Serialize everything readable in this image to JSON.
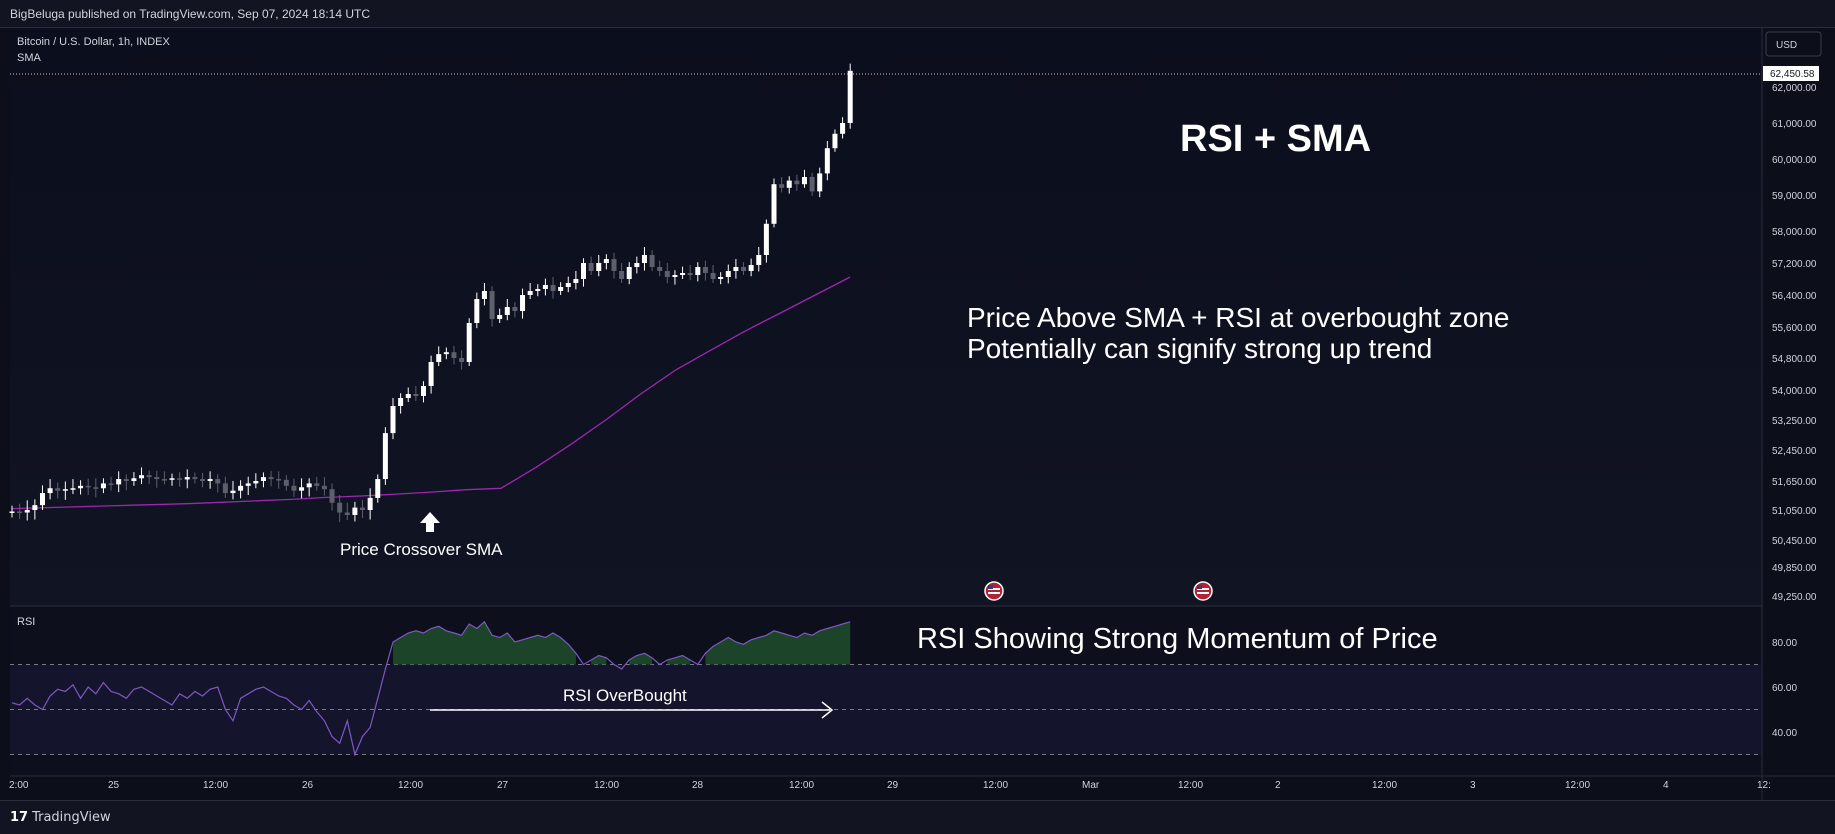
{
  "header": {
    "published": "BigBeluga published on TradingView.com, Sep 07, 2024 18:14 UTC"
  },
  "legend": {
    "symbol": "Bitcoin / U.S. Dollar, 1h, INDEX",
    "indicator": "SMA"
  },
  "currency_button": "USD",
  "rsi_label": "RSI",
  "footer": {
    "brand": "TradingView",
    "logo": "17"
  },
  "colors": {
    "bg": "#0c0f1a",
    "bull": "#ffffff",
    "bear": "#5d606b",
    "sma": "#9c27b0",
    "rsi": "#7e57c2",
    "rsi_fill": "#1c1a3a",
    "overbought_fill": "#1e4d2b",
    "text": "#d1d4dc"
  },
  "chart_data": [
    {
      "type": "candlestick",
      "title": "Bitcoin / U.S. Dollar, 1h, INDEX",
      "last_price_label": "62,450.58",
      "y_ticks": [
        "62,000.00",
        "61,000.00",
        "60,000.00",
        "59,000.00",
        "58,000.00",
        "57,200.00",
        "56,400.00",
        "55,600.00",
        "54,800.00",
        "54,000.00",
        "53,250.00",
        "52,450.00",
        "51,650.00",
        "51,050.00",
        "50,450.00",
        "49,850.00",
        "49,250.00"
      ],
      "x_ticks": [
        "2:00",
        "25",
        "12:00",
        "26",
        "12:00",
        "27",
        "12:00",
        "28",
        "12:00",
        "29",
        "12:00",
        "Mar",
        "12:00",
        "2",
        "12:00",
        "3",
        "12:00",
        "4",
        "12:"
      ],
      "close": [
        51020,
        51000,
        51050,
        51150,
        51400,
        51500,
        51450,
        51480,
        51500,
        51550,
        51520,
        51500,
        51600,
        51580,
        51700,
        51650,
        51720,
        51800,
        51750,
        51700,
        51680,
        51720,
        51690,
        51750,
        51700,
        51650,
        51700,
        51600,
        51400,
        51450,
        51550,
        51600,
        51650,
        51750,
        51700,
        51680,
        51550,
        51450,
        51520,
        51600,
        51550,
        51480,
        51200,
        51000,
        50950,
        51100,
        51050,
        51300,
        51700,
        52900,
        53600,
        53800,
        53900,
        53850,
        54100,
        54700,
        54900,
        54950,
        54800,
        54700,
        55700,
        56300,
        56500,
        55800,
        55900,
        56100,
        56000,
        56400,
        56500,
        56550,
        56650,
        56500,
        56600,
        56700,
        56800,
        57200,
        57000,
        57200,
        57300,
        57000,
        56800,
        57100,
        57200,
        57400,
        57100,
        57000,
        56850,
        56900,
        56950,
        56900,
        57100,
        56950,
        56800,
        56850,
        57000,
        57100,
        57000,
        57150,
        57400,
        58200,
        59300,
        59200,
        59400,
        59300,
        59500,
        59100,
        59600,
        60300,
        60700,
        61000,
        62450
      ],
      "sma": [
        51080,
        51100,
        51120,
        51140,
        51160,
        51180,
        51210,
        51240,
        51270,
        51310,
        51340,
        51380,
        51420,
        51470,
        51500,
        52000,
        52600,
        53250,
        53900,
        54500,
        55000,
        55500,
        55950,
        56400,
        56850
      ],
      "annotations": [
        {
          "text": "RSI + SMA"
        },
        {
          "text": "Price Above SMA + RSI at overbought zone"
        },
        {
          "text": "Potentially can signify strong up trend"
        },
        {
          "text": "Price Crossover SMA"
        }
      ]
    },
    {
      "type": "line",
      "title": "RSI",
      "y_ticks": [
        "80.00",
        "60.00",
        "40.00"
      ],
      "levels": [
        70,
        50,
        30
      ],
      "rsi": [
        53,
        52,
        55,
        52,
        50,
        56,
        59,
        58,
        61,
        55,
        60,
        57,
        62,
        58,
        57,
        55,
        59,
        60,
        58,
        56,
        54,
        52,
        57,
        55,
        58,
        56,
        59,
        60,
        50,
        45,
        55,
        57,
        59,
        60,
        58,
        56,
        55,
        52,
        50,
        54,
        49,
        45,
        38,
        35,
        45,
        30,
        38,
        42,
        55,
        68,
        80,
        82,
        84,
        85,
        84,
        86,
        87,
        85,
        84,
        83,
        88,
        86,
        89,
        83,
        82,
        84,
        80,
        81,
        82,
        83,
        82,
        84,
        82,
        79,
        75,
        70,
        72,
        74,
        73,
        70,
        68,
        72,
        74,
        75,
        73,
        70,
        72,
        73,
        74,
        72,
        70,
        75,
        78,
        80,
        82,
        80,
        79,
        81,
        82,
        83,
        85,
        84,
        83,
        82,
        84,
        83,
        85,
        86,
        87,
        88,
        89
      ],
      "annotations": [
        {
          "text": "RSI Showing Strong Momentum of Price"
        },
        {
          "text": "RSI OverBought"
        }
      ]
    }
  ]
}
